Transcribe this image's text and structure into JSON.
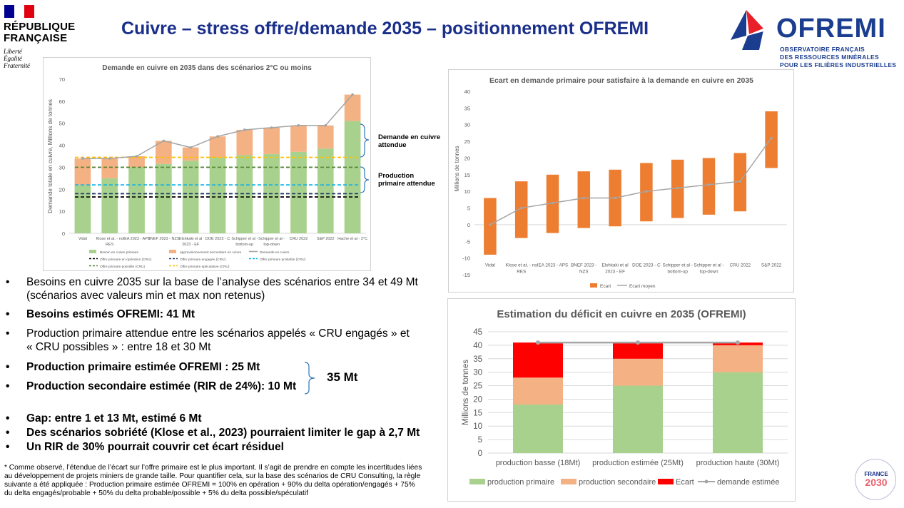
{
  "header": {
    "gov_line1": "RÉPUBLIQUE",
    "gov_line2": "FRANÇAISE",
    "motto": [
      "Liberté",
      "Égalité",
      "Fraternité"
    ],
    "title": "Cuivre – stress offre/demande 2035 – positionnement OFREMI",
    "ofremi_name": "OFREMI",
    "ofremi_tagline": [
      "OBSERVATOIRE FRANÇAIS",
      "DES RESSOURCES MINÉRALES",
      "POUR LES FILIÈRES INDUSTRIELLES"
    ]
  },
  "colors": {
    "title_blue": "#1a2f8a",
    "green": "#a9d18e",
    "salmon": "#f4b183",
    "orange": "#ed7d31",
    "red": "#ff0000",
    "grey_line": "#a5a5a5",
    "dark_blue": "#1f3864",
    "light_blue": "#00b0f0",
    "dark_green": "#548235",
    "yellow": "#ffc000"
  },
  "annotations": {
    "demand": [
      "Demande en cuivre",
      "attendue"
    ],
    "production": [
      "Production",
      "primaire attendue"
    ]
  },
  "bullets": [
    {
      "lines": [
        "Besoins en cuivre 2035 sur la base de l’analyse des scénarios entre 34 et 49 Mt",
        "(scénarios avec valeurs min et max non retenus)"
      ],
      "bold": false
    },
    {
      "lines": [
        "Besoins estimés OFREMI: 41 Mt"
      ],
      "bold": true
    },
    {
      "lines": [
        "Production primaire attendue entre les scénarios appelés « CRU engagés » et",
        "« CRU possibles » : entre 18 et 30 Mt"
      ],
      "bold": false
    },
    {
      "lines": [
        "Production primaire estimée OFREMI : 25 Mt"
      ],
      "bold": true
    },
    {
      "lines": [
        "Production secondaire estimée (RIR de 24%): 10 Mt"
      ],
      "bold": true
    },
    {
      "lines": [
        "Gap: entre 1 et 13 Mt, estimé 6 Mt"
      ],
      "bold": true
    },
    {
      "lines": [
        "Des scénarios sobriété (Klose et al., 2023) pourraient limiter le gap à 2,7 Mt"
      ],
      "bold": true
    },
    {
      "lines": [
        "Un RIR de 30% pourrait couvrir cet écart résiduel"
      ],
      "bold": true
    }
  ],
  "bullet_symbol": "•",
  "brace_total": "35 Mt",
  "footnote": [
    "* Comme observé, l’étendue de l’écart sur l’offre primaire est le plus important. Il s’agit de prendre en compte les incertitudes liées",
    "au développement de projets miniers de grande taille. Pour quantifier cela, sur la base des scénarios de CRU Consulting, la règle",
    "suivante a été appliquée : Production primaire estimée OFREMI = 100% en opération + 90% du delta opération/engagés + 75%",
    "du delta engagés/probable + 50% du delta probable/possible + 5% du delta possible/spéculatif"
  ],
  "france2030": {
    "top": "FRANCE",
    "bottom": "2030"
  },
  "chart_data": [
    {
      "type": "bar",
      "stacked": true,
      "title": "Demande en cuivre en 2035 dans des scénarios 2°C ou moins",
      "ylabel": "Demande totale en cuivre, Millions de tonnes",
      "ylim": [
        0,
        70
      ],
      "yticks": [
        0,
        10,
        20,
        30,
        40,
        50,
        60,
        70
      ],
      "categories": [
        [
          "Vidal"
        ],
        [
          "Klose et at. - no",
          "RES"
        ],
        [
          "IEA 2023 - APS"
        ],
        [
          "BNEF 2023 - NZS"
        ],
        [
          "Elshkaki et al",
          "2023 - EF"
        ],
        [
          "DOE 2023 - C"
        ],
        [
          "Schipper et al -",
          "bottom-up"
        ],
        [
          "Schipper et al -",
          "top-down"
        ],
        [
          "CRU 2022"
        ],
        [
          "S&P 2022"
        ],
        [
          "Hache et al - 2°C"
        ]
      ],
      "series": [
        {
          "name": "Besoin en cuivre primaire",
          "type": "bar",
          "color": "#a9d18e",
          "values": [
            22,
            25,
            30,
            31.5,
            33,
            34.5,
            35.5,
            36,
            37,
            38.5,
            51
          ]
        },
        {
          "name": "approvisionnement secondaire en cuivre",
          "type": "bar",
          "color": "#f4b183",
          "values": [
            12,
            9,
            5,
            10.5,
            6,
            9.5,
            11.5,
            12,
            12,
            10.5,
            12
          ]
        },
        {
          "name": "Demande en cuivre",
          "type": "line",
          "color": "#a5a5a5",
          "values": [
            34,
            34,
            35,
            42,
            39,
            44,
            47,
            48,
            49,
            49,
            63
          ]
        }
      ],
      "reference_lines": [
        {
          "name": "Offre primaire en opération (CRU)",
          "value": 16.5,
          "color": "#000000"
        },
        {
          "name": "Offre primaire engagée (CRU)",
          "value": 18,
          "color": "#1f3864"
        },
        {
          "name": "Offre primaire probable (CRU)",
          "value": 22,
          "color": "#00b0f0"
        },
        {
          "name": "Offre primaire possible (CRU)",
          "value": 30,
          "color": "#548235"
        },
        {
          "name": "Offre primaire spéculative (CRU)",
          "value": 34.5,
          "color": "#ffc000"
        }
      ],
      "legend_position": "bottom"
    },
    {
      "type": "bar",
      "subtype": "floating",
      "title": "Ecart en demande primaire pour satisfaire à la demande en cuivre en 2035",
      "ylabel": "Millions de tonnes",
      "ylim": [
        -15,
        40
      ],
      "yticks": [
        -15,
        -10,
        -5,
        0,
        5,
        10,
        15,
        20,
        25,
        30,
        35,
        40
      ],
      "categories": [
        [
          "Vidal"
        ],
        [
          "Klose et at. - no",
          "RES"
        ],
        [
          "IEA 2023 - APS"
        ],
        [
          "BNEF 2023 -",
          "NZS"
        ],
        [
          "Elshkaki et al",
          "2023 - EF"
        ],
        [
          "DOE 2023 - C"
        ],
        [
          "Schipper et al -",
          "bottom-up"
        ],
        [
          "Schipper et al -",
          "top-down"
        ],
        [
          "CRU 2022"
        ],
        [
          "S&P 2022"
        ]
      ],
      "series": [
        {
          "name": "Ecart",
          "type": "floating-bar",
          "color": "#ed7d31",
          "low": [
            -9,
            -4,
            -2.5,
            -1,
            -0.5,
            1,
            2,
            3,
            4,
            17
          ],
          "high": [
            8,
            13,
            15,
            16,
            16.5,
            18.5,
            19.5,
            20,
            21.5,
            34
          ]
        },
        {
          "name": "Ecart moyen",
          "type": "line",
          "color": "#a5a5a5",
          "values": [
            0,
            5,
            6.5,
            8,
            8,
            10,
            11,
            12,
            13,
            26
          ]
        }
      ],
      "legend_position": "bottom"
    },
    {
      "type": "bar",
      "stacked": true,
      "title": "Estimation du déficit en cuivre en 2035 (OFREMI)",
      "ylabel": "Millions de tonnes",
      "ylim": [
        0,
        45
      ],
      "yticks": [
        0,
        5,
        10,
        15,
        20,
        25,
        30,
        35,
        40,
        45
      ],
      "categories": [
        [
          "production basse (18Mt)"
        ],
        [
          "production estimée (25Mt)"
        ],
        [
          "production haute (30Mt)"
        ]
      ],
      "series": [
        {
          "name": "production primaire",
          "type": "bar",
          "color": "#a9d18e",
          "values": [
            18,
            25,
            30
          ]
        },
        {
          "name": "production secondaire",
          "type": "bar",
          "color": "#f4b183",
          "values": [
            10,
            10,
            10
          ]
        },
        {
          "name": "Ecart",
          "type": "bar",
          "color": "#ff0000",
          "values": [
            13,
            6,
            1
          ]
        },
        {
          "name": "demande estimée",
          "type": "line",
          "color": "#a5a5a5",
          "values": [
            41,
            41,
            41
          ]
        }
      ],
      "legend_position": "bottom"
    }
  ]
}
